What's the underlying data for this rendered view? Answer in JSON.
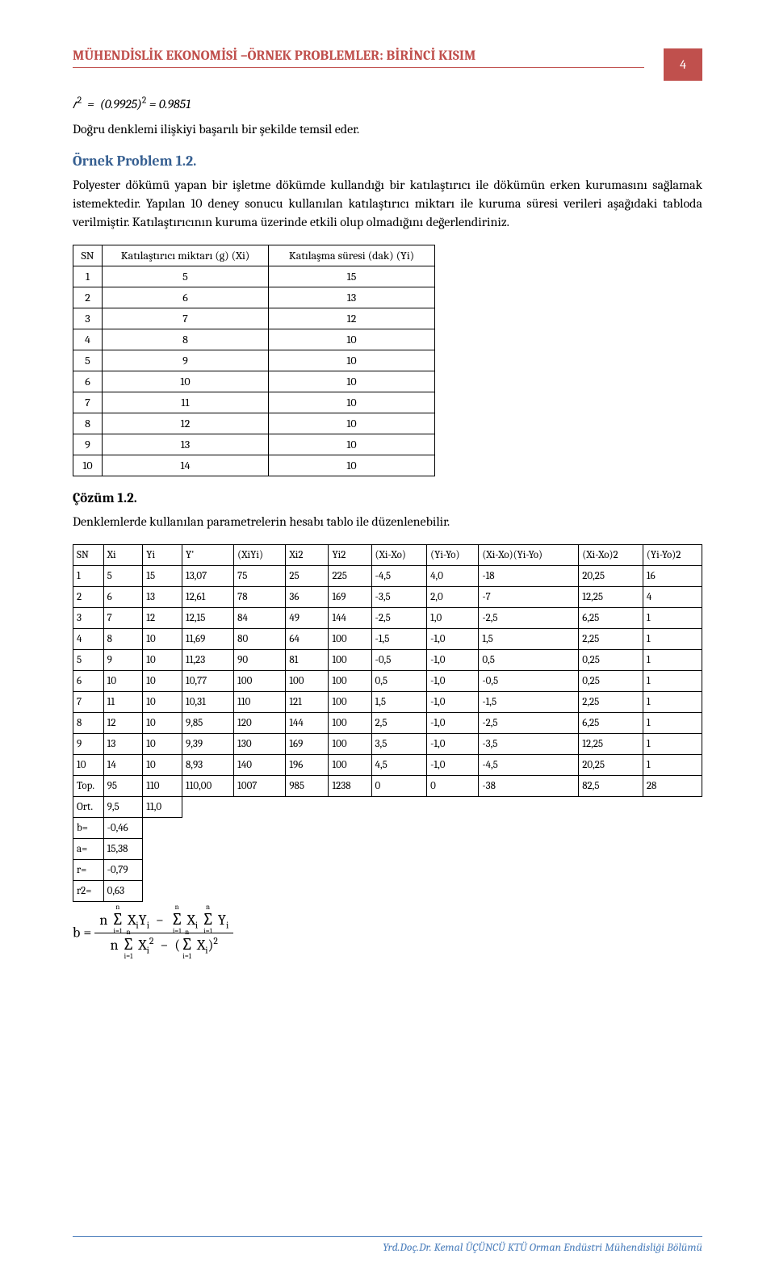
{
  "header": {
    "title": "MÜHENDİSLİK EKONOMİSİ –ÖRNEK PROBLEMLER: BİRİNCİ KISIM",
    "page_number": "4",
    "title_color": "#c0504d",
    "box_bg": "#c0504d",
    "box_fg": "#ffffff"
  },
  "eq_r2": "r² = (0.9925)² = 0.9851",
  "para_intro": "Doğru denklemi ilişkiyi başarılı bir şekilde temsil eder.",
  "problem": {
    "title": "Örnek Problem 1.2.",
    "text": "Polyester dökümü yapan bir işletme dökümde kullandığı bir katılaştırıcı ile dökümün erken kurumasını sağlamak istemektedir. Yapılan 10 deney sonucu kullanılan katılaştırıcı miktarı ile kuruma süresi verileri aşağıdaki tabloda verilmiştir. Katılaştırıcının kuruma üzerinde etkili olup olmadığını değerlendiriniz.",
    "title_color": "#365f91"
  },
  "table1": {
    "columns": [
      "SN",
      "Katılaştırıcı miktarı (g) (Xi)",
      "Katılaşma süresi (dak) (Yi)"
    ],
    "rows": [
      [
        "1",
        "5",
        "15"
      ],
      [
        "2",
        "6",
        "13"
      ],
      [
        "3",
        "7",
        "12"
      ],
      [
        "4",
        "8",
        "10"
      ],
      [
        "5",
        "9",
        "10"
      ],
      [
        "6",
        "10",
        "10"
      ],
      [
        "7",
        "11",
        "10"
      ],
      [
        "8",
        "12",
        "10"
      ],
      [
        "9",
        "13",
        "10"
      ],
      [
        "10",
        "14",
        "10"
      ]
    ]
  },
  "solution": {
    "title": "Çözüm 1.2.",
    "text": "Denklemlerde kullanılan parametrelerin hesabı tablo ile düzenlenebilir."
  },
  "table2": {
    "columns": [
      "SN",
      "Xi",
      "Yi",
      "Y'",
      "(XiYi)",
      "Xi2",
      "Yi2",
      "(Xi-Xo)",
      "(Yi-Yo)",
      "(Xi-Xo)(Yi-Yo)",
      "(Xi-Xo)2",
      "(Yi-Yo)2"
    ],
    "rows": [
      [
        "1",
        "5",
        "15",
        "13,07",
        "75",
        "25",
        "225",
        "-4,5",
        "4,0",
        "-18",
        "20,25",
        "16"
      ],
      [
        "2",
        "6",
        "13",
        "12,61",
        "78",
        "36",
        "169",
        "-3,5",
        "2,0",
        "-7",
        "12,25",
        "4"
      ],
      [
        "3",
        "7",
        "12",
        "12,15",
        "84",
        "49",
        "144",
        "-2,5",
        "1,0",
        "-2,5",
        "6,25",
        "1"
      ],
      [
        "4",
        "8",
        "10",
        "11,69",
        "80",
        "64",
        "100",
        "-1,5",
        "-1,0",
        "1,5",
        "2,25",
        "1"
      ],
      [
        "5",
        "9",
        "10",
        "11,23",
        "90",
        "81",
        "100",
        "-0,5",
        "-1,0",
        "0,5",
        "0,25",
        "1"
      ],
      [
        "6",
        "10",
        "10",
        "10,77",
        "100",
        "100",
        "100",
        "0,5",
        "-1,0",
        "-0,5",
        "0,25",
        "1"
      ],
      [
        "7",
        "11",
        "10",
        "10,31",
        "110",
        "121",
        "100",
        "1,5",
        "-1,0",
        "-1,5",
        "2,25",
        "1"
      ],
      [
        "8",
        "12",
        "10",
        "9,85",
        "120",
        "144",
        "100",
        "2,5",
        "-1,0",
        "-2,5",
        "6,25",
        "1"
      ],
      [
        "9",
        "13",
        "10",
        "9,39",
        "130",
        "169",
        "100",
        "3,5",
        "-1,0",
        "-3,5",
        "12,25",
        "1"
      ],
      [
        "10",
        "14",
        "10",
        "8,93",
        "140",
        "196",
        "100",
        "4,5",
        "-1,0",
        "-4,5",
        "20,25",
        "1"
      ],
      [
        "Top.",
        "95",
        "110",
        "110,00",
        "1007",
        "985",
        "1238",
        "0",
        "0",
        "-38",
        "82,5",
        "28"
      ],
      [
        "Ort.",
        "9,5",
        "11,0",
        "",
        "",
        "",
        "",
        "",
        "",
        "",
        "",
        ""
      ],
      [
        "b=",
        "-0,46",
        "",
        "",
        "",
        "",
        "",
        "",
        "",
        "",
        "",
        ""
      ],
      [
        "a=",
        "15,38",
        "",
        "",
        "",
        "",
        "",
        "",
        "",
        "",
        "",
        ""
      ],
      [
        "r=",
        "-0,79",
        "",
        "",
        "",
        "",
        "",
        "",
        "",
        "",
        "",
        ""
      ],
      [
        "r2=",
        "0,63",
        "",
        "",
        "",
        "",
        "",
        "",
        "",
        "",
        "",
        ""
      ]
    ],
    "full_row_count": 11
  },
  "footer": {
    "text": "Yrd.Doç.Dr. Kemal ÜÇÜNCÜ KTÜ Orman Endüstri Mühendisliği Bölümü",
    "color": "#4f81bd"
  }
}
